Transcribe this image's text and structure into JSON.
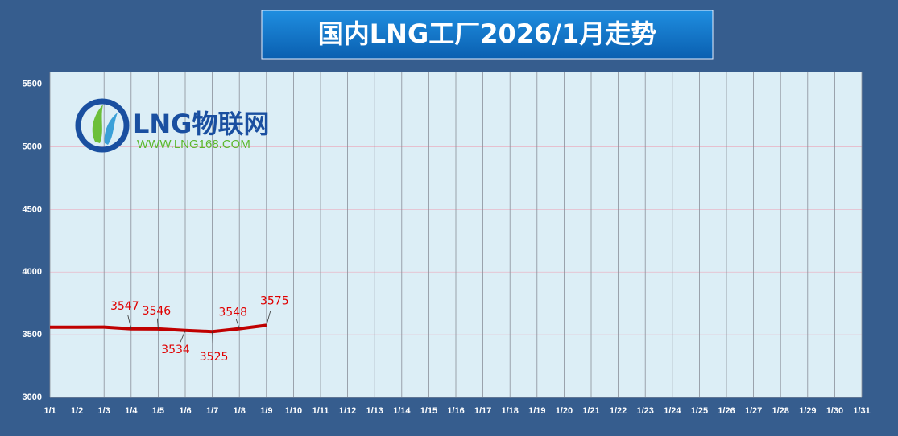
{
  "chart_data": {
    "type": "line",
    "title": "国内LNG工厂2026/1月走势",
    "logo": {
      "name": "LNG物联网",
      "url": "WWW.LNG168.COM"
    },
    "categories": [
      "1/1",
      "1/2",
      "1/3",
      "1/4",
      "1/5",
      "1/6",
      "1/7",
      "1/8",
      "1/9",
      "1/10",
      "1/11",
      "1/12",
      "1/13",
      "1/14",
      "1/15",
      "1/16",
      "1/17",
      "1/18",
      "1/19",
      "1/20",
      "1/21",
      "1/22",
      "1/23",
      "1/24",
      "1/25",
      "1/26",
      "1/27",
      "1/28",
      "1/29",
      "1/30",
      "1/31"
    ],
    "values": [
      3560,
      3560,
      3561,
      3547,
      3546,
      3534,
      3525,
      3548,
      3575,
      null,
      null,
      null,
      null,
      null,
      null,
      null,
      null,
      null,
      null,
      null,
      null,
      null,
      null,
      null,
      null,
      null,
      null,
      null,
      null,
      null,
      null
    ],
    "value_labels": [
      null,
      null,
      null,
      "3547",
      "3546",
      "3534",
      "3525",
      "3548",
      "3575",
      null,
      null,
      null,
      null,
      null,
      null,
      null,
      null,
      null,
      null,
      null,
      null,
      null,
      null,
      null,
      null,
      null,
      null,
      null,
      null,
      null,
      null
    ],
    "color": "#c00000",
    "ylim": [
      3000,
      5600
    ],
    "yticks": [
      3000,
      3500,
      4000,
      4500,
      5000,
      5500
    ],
    "grid": true
  }
}
